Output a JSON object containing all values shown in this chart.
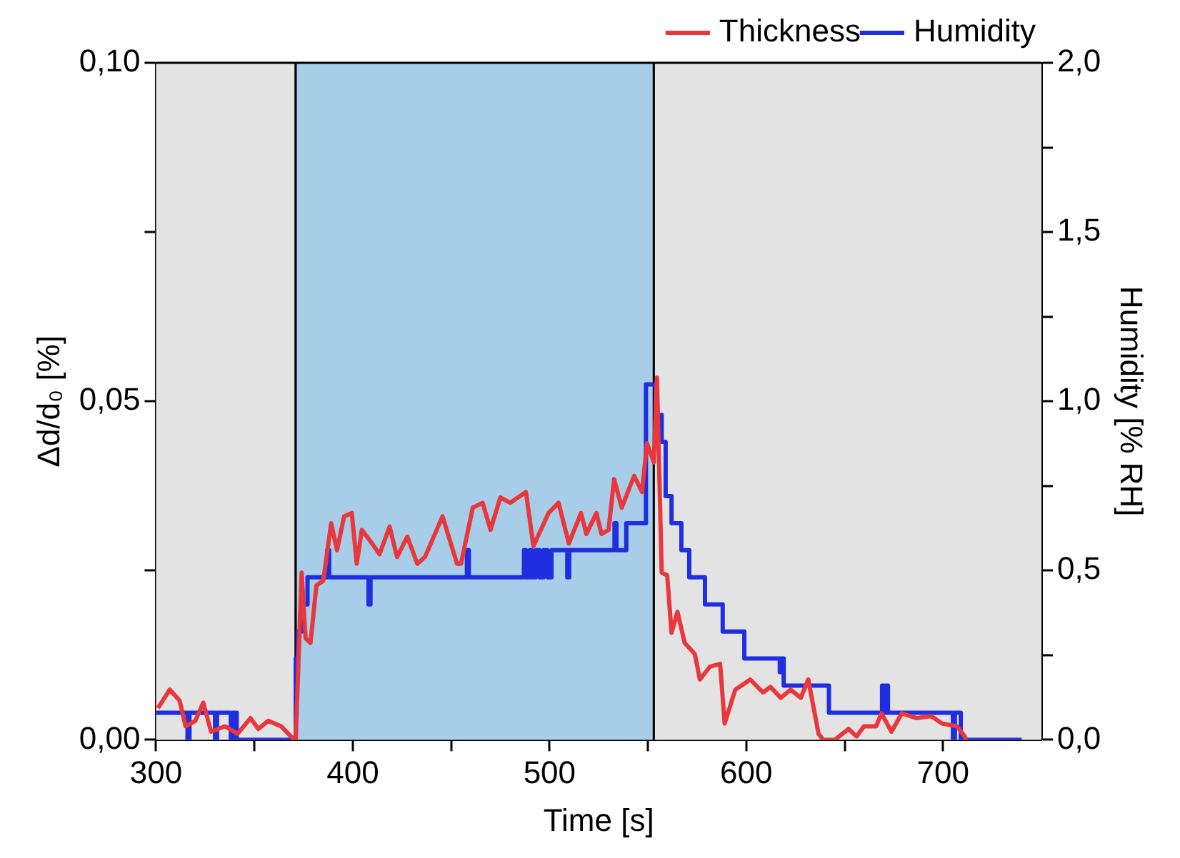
{
  "chart_data": {
    "type": "line",
    "xlabel": "Time [s]",
    "ylabel": "Δd/d₀ [%]",
    "y2label": "Humidity [% RH]",
    "xlim": [
      300,
      750
    ],
    "xticks": [
      300,
      {
        "value": 350,
        "label": null
      },
      400,
      {
        "value": 450,
        "label": null
      },
      500,
      {
        "value": 550,
        "label": null
      },
      600,
      {
        "value": 650,
        "label": null
      },
      700
    ],
    "ylim": [
      0,
      0.1
    ],
    "yticks": [
      {
        "value": 0,
        "label": "0,00"
      },
      {
        "value": 0.025,
        "label": null
      },
      {
        "value": 0.05,
        "label": "0,05"
      },
      {
        "value": 0.075,
        "label": null
      },
      {
        "value": 0.1,
        "label": "0,10"
      }
    ],
    "y2lim": [
      0,
      2
    ],
    "y2ticks": [
      {
        "value": 0,
        "label": "0,0"
      },
      {
        "value": 0.25,
        "label": null
      },
      {
        "value": 0.5,
        "label": "0,5"
      },
      {
        "value": 0.75,
        "label": null
      },
      {
        "value": 1,
        "label": "1,0"
      },
      {
        "value": 1.25,
        "label": null
      },
      {
        "value": 1.5,
        "label": "1,5"
      },
      {
        "value": 1.75,
        "label": null
      },
      {
        "value": 2,
        "label": "2,0"
      }
    ],
    "grid": false,
    "legend": "top right",
    "marker": "none",
    "line_style": "solid",
    "bands": [
      {
        "axis": "x",
        "from": 300,
        "to": 371,
        "color": "#e3e3e3"
      },
      {
        "axis": "x",
        "from": 371,
        "to": 553,
        "color": "#a8cde9"
      },
      {
        "axis": "x",
        "from": 553,
        "to": 750,
        "color": "#e3e3e3"
      }
    ],
    "series": [
      {
        "name": "Thickness",
        "color": "#e8383c",
        "x": [
          301,
          307,
          312,
          315,
          320,
          324,
          328,
          335,
          341.5,
          348,
          352,
          357,
          363.6,
          368.5,
          371,
          374,
          376,
          378.5,
          381.5,
          385,
          389,
          392,
          395.6,
          399.5,
          402,
          404.6,
          409.8,
          413.6,
          418.7,
          422.5,
          427.7,
          432.8,
          436.7,
          445.6,
          453,
          455,
          461,
          466,
          470,
          475,
          480,
          488,
          491.8,
          499.5,
          504.6,
          509.8,
          516,
          518.7,
          523.8,
          526.4,
          530,
          532.8,
          536.7,
          543,
          547,
          549.5,
          553,
          554.6,
          557,
          559.8,
          562,
          565,
          568.7,
          573.8,
          576.4,
          581.5,
          586.7,
          589,
          594.4,
          602,
          608.5,
          612.3,
          617.5,
          622.5,
          627.7,
          631.5,
          636.7,
          639,
          645,
          652,
          656,
          659.8,
          666,
          668.7,
          673.8,
          679,
          686.7,
          694,
          699.5,
          707,
          711,
          712
        ],
        "values": [
          0.0047,
          0.0074,
          0.0058,
          0.002,
          0.0028,
          0.0055,
          0.0012,
          0.002,
          0.0009,
          0.0032,
          0.0016,
          0.0028,
          0.002,
          0.0005,
          0,
          0.0247,
          0.015,
          0.0143,
          0.0228,
          0.0235,
          0.032,
          0.028,
          0.033,
          0.0335,
          0.026,
          0.031,
          0.029,
          0.0274,
          0.0315,
          0.027,
          0.03,
          0.026,
          0.027,
          0.033,
          0.026,
          0.026,
          0.0343,
          0.035,
          0.031,
          0.0358,
          0.035,
          0.0366,
          0.0286,
          0.0335,
          0.035,
          0.029,
          0.0335,
          0.0304,
          0.0335,
          0.0304,
          0.031,
          0.0385,
          0.0343,
          0.039,
          0.0366,
          0.0438,
          0.041,
          0.0535,
          0.0247,
          0.0243,
          0.0158,
          0.0189,
          0.0143,
          0.0127,
          0.0089,
          0.0108,
          0.0112,
          0.0024,
          0.0074,
          0.0089,
          0.007,
          0.0078,
          0.0062,
          0.0074,
          0.0062,
          0.0089,
          0.0009,
          0,
          0,
          0.0016,
          0.0005,
          0.002,
          0.002,
          0.0039,
          0.0012,
          0.0039,
          0.0032,
          0.0035,
          0.0024,
          0.002,
          0.0005,
          0
        ]
      },
      {
        "name": "Humidity",
        "type": "step",
        "color": "#1f2fe0",
        "axis": "y2",
        "x": [
          300,
          316,
          317,
          318,
          330,
          331,
          333,
          338,
          339,
          341,
          342,
          371,
          372,
          374,
          377,
          379,
          387,
          388,
          389,
          408,
          409,
          410,
          458,
          459,
          460,
          487,
          488,
          490,
          491,
          493,
          495,
          497,
          499,
          501,
          502,
          509,
          510,
          511,
          533,
          534,
          535,
          539,
          540,
          549,
          552,
          554,
          557,
          559,
          562,
          567,
          571,
          579,
          588,
          599,
          617,
          618,
          619,
          642,
          669,
          670,
          671,
          672,
          673,
          705,
          706,
          709,
          740
        ],
        "values": [
          0.08,
          0.08,
          0,
          0.08,
          0.08,
          0,
          0.08,
          0.08,
          0,
          0.08,
          0,
          0,
          0.24,
          0.32,
          0.4,
          0.48,
          0.48,
          0.56,
          0.48,
          0.48,
          0.4,
          0.48,
          0.48,
          0.56,
          0.48,
          0.48,
          0.56,
          0.48,
          0.56,
          0.48,
          0.56,
          0.48,
          0.56,
          0.48,
          0.56,
          0.56,
          0.48,
          0.56,
          0.56,
          0.64,
          0.56,
          0.56,
          0.64,
          0.64,
          1.05,
          1.05,
          0.96,
          0.88,
          0.72,
          0.64,
          0.56,
          0.48,
          0.4,
          0.32,
          0.24,
          0.2,
          0.24,
          0.16,
          0.08,
          0.16,
          0.08,
          0.16,
          0.08,
          0.08,
          0,
          0.08,
          0
        ]
      }
    ]
  }
}
